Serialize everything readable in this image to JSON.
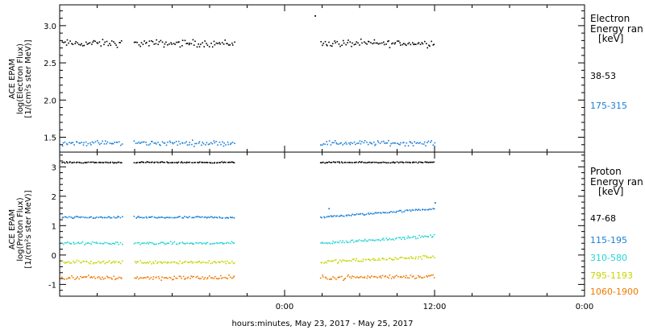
{
  "chart_data": [
    {
      "type": "scatter",
      "panel": "electron",
      "ylabel": [
        "ACE EPAM",
        "log(Electron Flux)",
        "[1/(cm²s ster MeV)]"
      ],
      "ylim": [
        1.3,
        3.28
      ],
      "yticks": [
        1.5,
        2.0,
        2.5,
        3.0
      ],
      "ytick_labels": [
        "1.5",
        "2.0",
        "2.5",
        "3.0"
      ],
      "legend": {
        "title": [
          "Electron",
          "Energy ran",
          "[keV]"
        ],
        "entries": [
          {
            "label": "38-53",
            "color": "#000000"
          },
          {
            "label": "175-315",
            "color": "#1a7fd8"
          }
        ]
      },
      "series": [
        {
          "name": "38-53",
          "color": "#000000",
          "level": 2.77,
          "trend": 0.0,
          "jitter": 0.07
        },
        {
          "name": "175-315",
          "color": "#1a7fd8",
          "level": 1.43,
          "trend": 0.0,
          "jitter": 0.05
        }
      ],
      "outliers": [
        {
          "series": "38-53",
          "x": 2.4,
          "y": 3.14
        }
      ]
    },
    {
      "type": "scatter",
      "panel": "proton",
      "ylabel": [
        "ACE EPAM",
        "log(Proton Flux)",
        "[1/(cm²s ster MeV)]"
      ],
      "ylim": [
        -1.4,
        3.5
      ],
      "yticks": [
        -1,
        0,
        1,
        2,
        3
      ],
      "ytick_labels": [
        "-1",
        "0",
        "1",
        "2",
        "3"
      ],
      "legend": {
        "title": [
          "Proton",
          "Energy ran",
          "[keV]"
        ],
        "entries": [
          {
            "label": "47-68",
            "color": "#000000"
          },
          {
            "label": "115-195",
            "color": "#1a7fd8"
          },
          {
            "label": "310-580",
            "color": "#22d4d4"
          },
          {
            "label": "795-1193",
            "color": "#c8d400"
          },
          {
            "label": "1060-1900",
            "color": "#ee7a00"
          }
        ]
      },
      "series": [
        {
          "name": "47-68",
          "color": "#000000",
          "level": 3.17,
          "trend": 0.0,
          "jitter": 0.03
        },
        {
          "name": "115-195",
          "color": "#1a7fd8",
          "level": 1.3,
          "trend": 0.3,
          "jitter": 0.05
        },
        {
          "name": "310-580",
          "color": "#22d4d4",
          "level": 0.42,
          "trend": 0.25,
          "jitter": 0.07
        },
        {
          "name": "795-1193",
          "color": "#c8d400",
          "level": -0.22,
          "trend": 0.18,
          "jitter": 0.09
        },
        {
          "name": "1060-1900",
          "color": "#ee7a00",
          "level": -0.75,
          "trend": 0.05,
          "jitter": 0.11
        }
      ],
      "outliers": [
        {
          "series": "115-195",
          "x": 3.5,
          "y": 1.6
        },
        {
          "series": "115-195",
          "x": 12.0,
          "y": 1.8
        }
      ]
    }
  ],
  "x_axis": {
    "label": "hours:minutes, May 23, 2017 - May 25, 2017",
    "tick_labels": [
      "0:00",
      "12:00",
      "0:00"
    ],
    "range_hours": [
      -18,
      24
    ],
    "major_ticks_hours": [
      0,
      12,
      24
    ],
    "minor_step_hours": 3,
    "data_segments_hours": [
      [
        -17.9,
        -13.0
      ],
      [
        -12.1,
        -4.0
      ],
      [
        2.8,
        12.0
      ]
    ]
  }
}
